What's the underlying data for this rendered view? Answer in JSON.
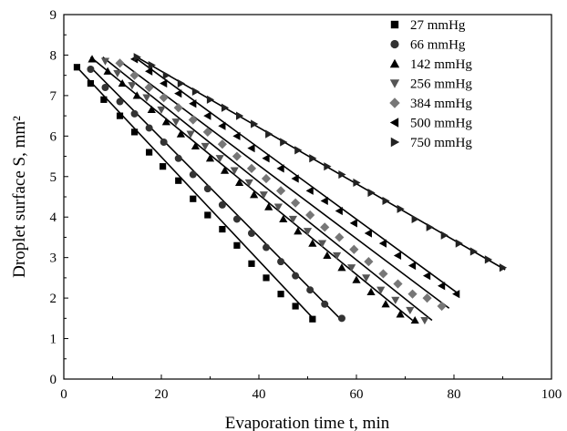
{
  "chart_data": {
    "type": "scatter",
    "xlabel": "Evaporation time t, min",
    "ylabel": "Droplet surface S, mm²",
    "xlim": [
      0,
      100
    ],
    "ylim": [
      0,
      9
    ],
    "xticks": [
      0,
      20,
      40,
      60,
      80,
      100
    ],
    "yticks": [
      0,
      1,
      2,
      3,
      4,
      5,
      6,
      7,
      8,
      9
    ],
    "x_tick_labels": [
      "0",
      "20",
      "40",
      "60",
      "80",
      "100"
    ],
    "y_tick_labels": [
      "0",
      "1",
      "2",
      "3",
      "4",
      "5",
      "6",
      "7",
      "8",
      "9"
    ],
    "grid": false,
    "legend_position": "top-right",
    "fit_lines": true,
    "series": [
      {
        "name": "27 mmHg",
        "marker": "square",
        "fit": [
          [
            2.7,
            7.7
          ],
          [
            51.5,
            1.45
          ]
        ],
        "x": [
          2.7,
          5.5,
          8.2,
          11.5,
          14.5,
          17.5,
          20.3,
          23.5,
          26.5,
          29.5,
          32.5,
          35.5,
          38.5,
          41.5,
          44.5,
          47.5,
          51.0
        ],
        "y": [
          7.7,
          7.3,
          6.9,
          6.5,
          6.1,
          5.6,
          5.25,
          4.9,
          4.45,
          4.05,
          3.7,
          3.3,
          2.85,
          2.5,
          2.1,
          1.8,
          1.48
        ]
      },
      {
        "name": "66 mmHg",
        "marker": "circle",
        "fit": [
          [
            5.5,
            7.7
          ],
          [
            57.0,
            1.45
          ]
        ],
        "x": [
          5.5,
          8.5,
          11.5,
          14.5,
          17.5,
          20.5,
          23.5,
          26.5,
          29.5,
          32.5,
          35.5,
          38.5,
          41.5,
          44.5,
          47.5,
          50.5,
          53.5,
          57.0
        ],
        "y": [
          7.65,
          7.2,
          6.85,
          6.55,
          6.2,
          5.85,
          5.45,
          5.05,
          4.7,
          4.3,
          3.95,
          3.6,
          3.25,
          2.9,
          2.55,
          2.2,
          1.85,
          1.5
        ]
      },
      {
        "name": "142 mmHg",
        "marker": "triangle-up",
        "fit": [
          [
            5.5,
            7.95
          ],
          [
            71.5,
            1.45
          ]
        ],
        "x": [
          5.8,
          9.0,
          12.0,
          15.0,
          18.0,
          21.0,
          24.0,
          27.0,
          30.0,
          33.0,
          36.0,
          39.0,
          42.0,
          45.0,
          48.0,
          51.0,
          54.0,
          57.0,
          60.0,
          63.0,
          66.0,
          69.0,
          72.0
        ],
        "y": [
          7.9,
          7.6,
          7.3,
          7.0,
          6.65,
          6.35,
          6.05,
          5.75,
          5.45,
          5.15,
          4.85,
          4.55,
          4.25,
          3.95,
          3.65,
          3.35,
          3.05,
          2.75,
          2.45,
          2.15,
          1.85,
          1.6,
          1.45
        ]
      },
      {
        "name": "256 mmHg",
        "marker": "triangle-down",
        "fit": [
          [
            8.0,
            7.95
          ],
          [
            75.5,
            1.45
          ]
        ],
        "x": [
          8.5,
          11.0,
          14.0,
          17.0,
          20.0,
          23.0,
          26.0,
          29.0,
          32.0,
          35.0,
          38.0,
          41.0,
          44.0,
          47.0,
          50.0,
          53.0,
          56.0,
          59.0,
          62.0,
          65.0,
          68.0,
          71.0,
          74.0
        ],
        "y": [
          7.85,
          7.55,
          7.25,
          6.95,
          6.65,
          6.35,
          6.05,
          5.75,
          5.45,
          5.15,
          4.85,
          4.55,
          4.25,
          3.95,
          3.65,
          3.35,
          3.05,
          2.75,
          2.5,
          2.2,
          1.95,
          1.7,
          1.45
        ]
      },
      {
        "name": "384 mmHg",
        "marker": "diamond",
        "fit": [
          [
            11.5,
            7.85
          ],
          [
            79.0,
            1.75
          ]
        ],
        "x": [
          11.5,
          14.5,
          17.5,
          20.5,
          23.5,
          26.5,
          29.5,
          32.5,
          35.5,
          38.5,
          41.5,
          44.5,
          47.5,
          50.5,
          53.5,
          56.5,
          59.5,
          62.5,
          65.5,
          68.5,
          71.5,
          74.5,
          77.5
        ],
        "y": [
          7.8,
          7.5,
          7.2,
          6.95,
          6.7,
          6.4,
          6.1,
          5.8,
          5.5,
          5.2,
          4.95,
          4.65,
          4.35,
          4.05,
          3.75,
          3.5,
          3.2,
          2.9,
          2.6,
          2.35,
          2.1,
          2.0,
          1.8
        ]
      },
      {
        "name": "500 mmHg",
        "marker": "triangle-left",
        "fit": [
          [
            14.5,
            7.95
          ],
          [
            81.0,
            2.1
          ]
        ],
        "x": [
          14.5,
          17.5,
          20.5,
          23.5,
          26.5,
          29.5,
          32.5,
          35.5,
          38.5,
          41.5,
          44.5,
          47.5,
          50.5,
          53.5,
          56.5,
          59.5,
          62.5,
          65.5,
          68.5,
          71.5,
          74.5,
          77.5,
          80.5
        ],
        "y": [
          7.9,
          7.6,
          7.3,
          7.05,
          6.8,
          6.5,
          6.25,
          6.0,
          5.7,
          5.45,
          5.2,
          4.95,
          4.65,
          4.4,
          4.15,
          3.85,
          3.6,
          3.35,
          3.05,
          2.8,
          2.55,
          2.3,
          2.1
        ]
      },
      {
        "name": "750 mmHg",
        "marker": "triangle-right",
        "fit": [
          [
            15.0,
            7.95
          ],
          [
            90.5,
            2.7
          ]
        ],
        "x": [
          15.0,
          18.0,
          21.0,
          24.0,
          27.0,
          30.0,
          33.0,
          36.0,
          39.0,
          42.0,
          45.0,
          48.0,
          51.0,
          54.0,
          57.0,
          60.0,
          63.0,
          66.0,
          69.0,
          72.0,
          75.0,
          78.0,
          81.0,
          84.0,
          87.0,
          90.0
        ],
        "y": [
          7.95,
          7.75,
          7.5,
          7.3,
          7.1,
          6.9,
          6.7,
          6.5,
          6.3,
          6.05,
          5.85,
          5.65,
          5.45,
          5.25,
          5.05,
          4.85,
          4.6,
          4.4,
          4.2,
          3.95,
          3.75,
          3.55,
          3.35,
          3.15,
          2.95,
          2.75
        ]
      }
    ]
  }
}
